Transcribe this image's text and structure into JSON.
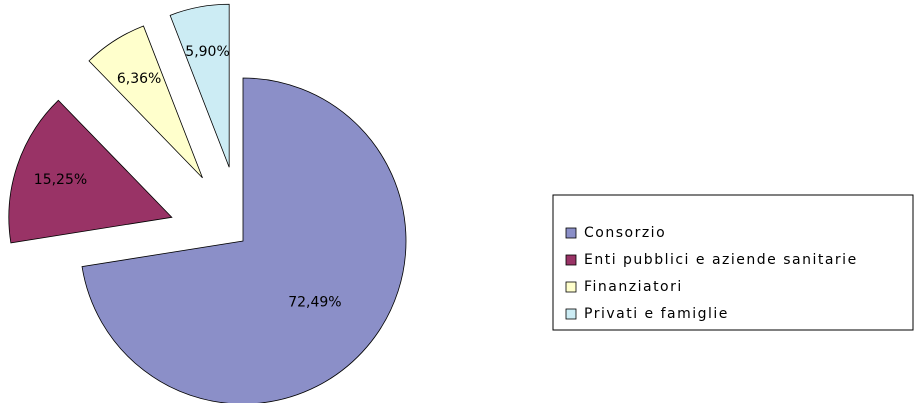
{
  "chart_data": {
    "type": "pie",
    "categories": [
      "Consorzio",
      "Enti pubblici e aziende sanitarie",
      "Finanziatori",
      "Privati e famiglie"
    ],
    "values": [
      72.49,
      15.25,
      6.36,
      5.9
    ],
    "value_labels": [
      "72,49%",
      "15,25%",
      "6,36%",
      "5,90%"
    ],
    "colors": [
      "#8b8fc8",
      "#993366",
      "#ffffcc",
      "#ccecf4"
    ],
    "legend": "right"
  }
}
